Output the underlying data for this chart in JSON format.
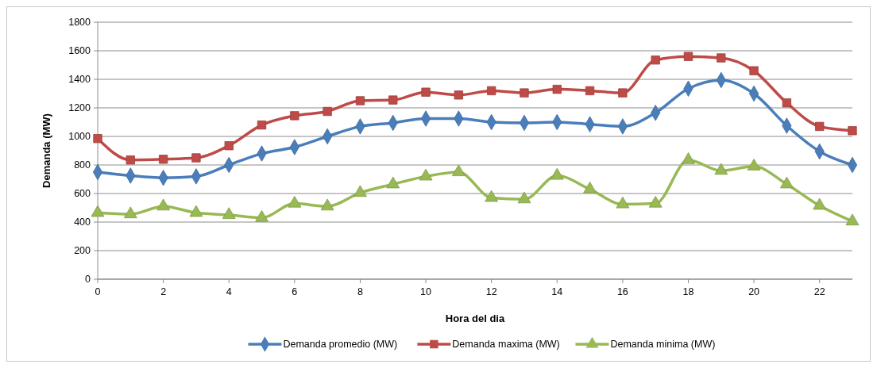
{
  "chart_data": {
    "type": "line",
    "xlabel": "Hora del dia",
    "ylabel": "Demanda (MW)",
    "x": [
      0,
      1,
      2,
      3,
      4,
      5,
      6,
      7,
      8,
      9,
      10,
      11,
      12,
      13,
      14,
      15,
      16,
      17,
      18,
      19,
      20,
      21,
      22,
      23
    ],
    "xlim": [
      0,
      23
    ],
    "xticks": [
      0,
      2,
      4,
      6,
      8,
      10,
      12,
      14,
      16,
      18,
      20,
      22
    ],
    "ylim": [
      0,
      1800
    ],
    "yticks": [
      0,
      200,
      400,
      600,
      800,
      1000,
      1200,
      1400,
      1600,
      1800
    ],
    "grid": "y",
    "legend": "bottom",
    "series": [
      {
        "name": "Demanda promedio (MW)",
        "color": "#4a7ebb",
        "marker": "diamond",
        "values": [
          750,
          725,
          710,
          720,
          800,
          880,
          925,
          1000,
          1070,
          1095,
          1125,
          1125,
          1100,
          1095,
          1100,
          1085,
          1070,
          1165,
          1335,
          1395,
          1300,
          1075,
          895,
          800
        ]
      },
      {
        "name": "Demanda maxima (MW)",
        "color": "#be4b48",
        "marker": "square",
        "values": [
          985,
          835,
          840,
          850,
          935,
          1080,
          1145,
          1175,
          1250,
          1255,
          1310,
          1290,
          1320,
          1305,
          1330,
          1320,
          1305,
          1535,
          1560,
          1550,
          1460,
          1235,
          1070,
          1040
        ]
      },
      {
        "name": "Demanda minima (MW)",
        "color": "#98b954",
        "marker": "triangle",
        "values": [
          465,
          455,
          510,
          465,
          450,
          430,
          530,
          510,
          605,
          665,
          720,
          750,
          570,
          560,
          725,
          630,
          525,
          530,
          835,
          760,
          790,
          665,
          515,
          405
        ]
      }
    ]
  }
}
